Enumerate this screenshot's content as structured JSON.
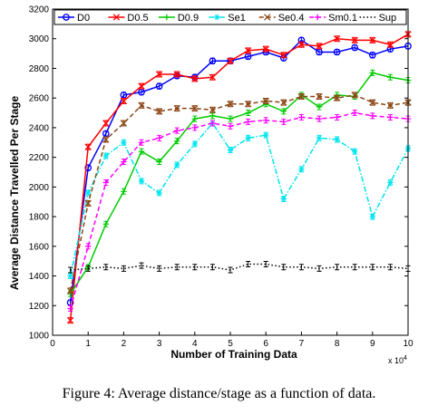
{
  "caption": "Figure 4: Average distance/stage as a function of data.",
  "chart_data": {
    "type": "line",
    "xlabel": "Number of Training Data",
    "ylabel": "Average Distance Travelled Per Stage",
    "x_multiplier_label": "x 10",
    "x_multiplier_exp": "4",
    "xlim": [
      0,
      10
    ],
    "ylim": [
      1000,
      3200
    ],
    "xticks": [
      0,
      1,
      2,
      3,
      4,
      5,
      6,
      7,
      8,
      9,
      10
    ],
    "yticks": [
      1000,
      1200,
      1400,
      1600,
      1800,
      2000,
      2200,
      2400,
      2600,
      2800,
      3000,
      3200
    ],
    "legend_placement": "top",
    "x": [
      0.5,
      1.0,
      1.5,
      2.0,
      2.5,
      3.0,
      3.5,
      4.0,
      4.5,
      5.0,
      5.5,
      6.0,
      6.5,
      7.0,
      7.5,
      8.0,
      8.5,
      9.0,
      9.5,
      10.0
    ],
    "series": [
      {
        "name": "D0",
        "color": "#0000ff",
        "marker": "circle",
        "dash": "solid",
        "values": [
          1220,
          2130,
          2360,
          2620,
          2640,
          2680,
          2750,
          2740,
          2850,
          2850,
          2880,
          2910,
          2870,
          2990,
          2910,
          2910,
          2940,
          2890,
          2930,
          2950
        ]
      },
      {
        "name": "D0.5",
        "color": "#ff0000",
        "marker": "x",
        "dash": "solid",
        "values": [
          1100,
          2270,
          2430,
          2580,
          2680,
          2760,
          2760,
          2730,
          2740,
          2850,
          2920,
          2930,
          2890,
          2960,
          2950,
          3000,
          2990,
          2990,
          2960,
          3030
        ]
      },
      {
        "name": "D0.9",
        "color": "#00cc00",
        "marker": "plus",
        "dash": "solid",
        "values": [
          1280,
          1460,
          1750,
          1970,
          2240,
          2170,
          2310,
          2460,
          2480,
          2460,
          2500,
          2560,
          2510,
          2620,
          2540,
          2620,
          2610,
          2770,
          2740,
          2720
        ]
      },
      {
        "name": "Se1",
        "color": "#00e5ee",
        "marker": "star",
        "dash": "dashdot",
        "values": [
          1400,
          1960,
          2210,
          2300,
          2040,
          1960,
          2150,
          2290,
          2430,
          2250,
          2330,
          2350,
          1920,
          2120,
          2330,
          2320,
          2240,
          1800,
          2030,
          2260
        ]
      },
      {
        "name": "Se0.4",
        "color": "#8b4513",
        "marker": "x",
        "dash": "dashed",
        "values": [
          1300,
          1890,
          2320,
          2430,
          2550,
          2510,
          2530,
          2530,
          2520,
          2560,
          2560,
          2580,
          2570,
          2610,
          2610,
          2600,
          2620,
          2570,
          2550,
          2570
        ]
      },
      {
        "name": "Sm0.1",
        "color": "#ff00ff",
        "marker": "plus",
        "dash": "dashed",
        "values": [
          1180,
          1600,
          2030,
          2170,
          2300,
          2330,
          2380,
          2400,
          2430,
          2410,
          2440,
          2450,
          2440,
          2470,
          2460,
          2470,
          2500,
          2480,
          2470,
          2460
        ]
      },
      {
        "name": "Sup",
        "color": "#000000",
        "marker": "none",
        "dash": "dotted",
        "values": [
          1440,
          1450,
          1460,
          1450,
          1470,
          1450,
          1460,
          1460,
          1460,
          1440,
          1480,
          1480,
          1460,
          1460,
          1450,
          1460,
          1460,
          1460,
          1460,
          1450
        ]
      }
    ]
  }
}
